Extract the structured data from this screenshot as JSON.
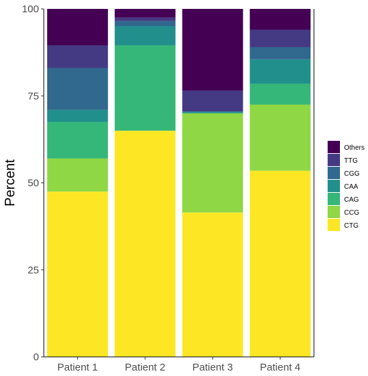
{
  "chart_data": {
    "type": "bar",
    "stacked": true,
    "categories": [
      "Patient 1",
      "Patient 2",
      "Patient 3",
      "Patient 4"
    ],
    "ylabel": "Percent",
    "xlabel": "",
    "ylim": [
      0,
      100
    ],
    "yticks": [
      0,
      25,
      50,
      75,
      100
    ],
    "grid": false,
    "legend_position": "right",
    "series": [
      {
        "name": "CTG",
        "color": "#FDE725",
        "values": [
          47.5,
          65.0,
          41.5,
          53.5
        ]
      },
      {
        "name": "CCG",
        "color": "#8FD744",
        "values": [
          9.5,
          0.0,
          28.5,
          19.0
        ]
      },
      {
        "name": "CAG",
        "color": "#35B779",
        "values": [
          10.5,
          24.5,
          0.0,
          6.0
        ]
      },
      {
        "name": "CAA",
        "color": "#21908C",
        "values": [
          3.5,
          5.5,
          0.5,
          7.0
        ]
      },
      {
        "name": "CGG",
        "color": "#31688E",
        "values": [
          12.0,
          1.5,
          0.0,
          3.5
        ]
      },
      {
        "name": "TTG",
        "color": "#443A83",
        "values": [
          6.5,
          1.0,
          6.0,
          5.0
        ]
      },
      {
        "name": "Others",
        "color": "#440154",
        "values": [
          10.5,
          2.5,
          23.5,
          6.0
        ]
      }
    ],
    "legend_order": [
      "Others",
      "TTG",
      "CGG",
      "CAA",
      "CAG",
      "CCG",
      "CTG"
    ]
  }
}
